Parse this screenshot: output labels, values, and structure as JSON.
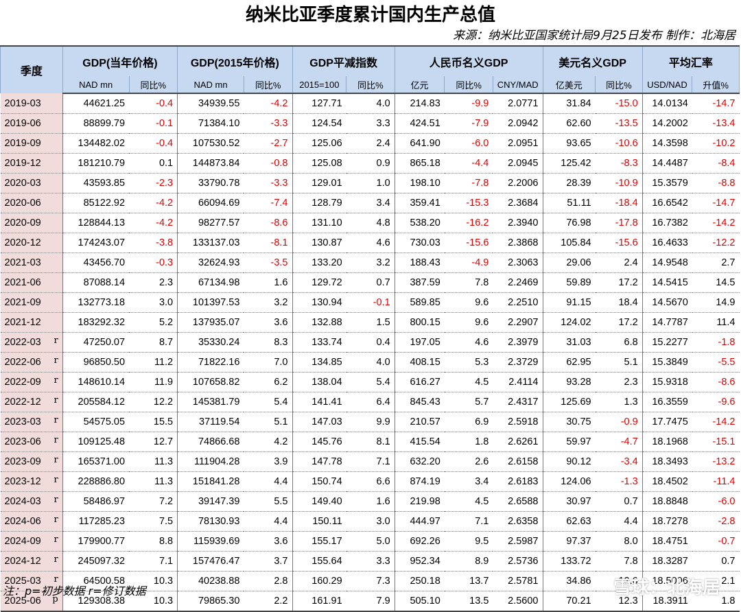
{
  "title": "纳米比亚季度累计国内生产总值",
  "source": "来源：纳米比亚国家统计局9月25日发布 制作：北海居",
  "note": "注：p=初步数据 r=修订数据",
  "watermark": "雪球：北海居",
  "header": {
    "quarter": "季度",
    "groups": [
      "GDP(当年价格)",
      "GDP(2015年价格)",
      "GDP平减指数",
      "人民币名义GDP",
      "美元名义GDP",
      "平均汇率"
    ],
    "sub": [
      "NAD mn",
      "同比%",
      "NAD mn",
      "同比%",
      "2015=100",
      "同比%",
      "亿元",
      "同比%",
      "CNY/MAD",
      "亿美元",
      "同比%",
      "USD/NAD",
      "升值%"
    ]
  },
  "colors": {
    "header_bg": "#c6d9f1",
    "quarter_bg": "#f2dcdb",
    "negative": "#e00000"
  },
  "rows": [
    {
      "q": "2019-03",
      "m": "",
      "v": [
        "44621.25",
        "-0.4",
        "34939.55",
        "-4.2",
        "127.71",
        "4.0",
        "214.83",
        "-9.9",
        "2.0771",
        "31.84",
        "-15.0",
        "14.0134",
        "-14.7"
      ]
    },
    {
      "q": "2019-06",
      "m": "",
      "v": [
        "88899.79",
        "-0.1",
        "71384.10",
        "-3.3",
        "124.54",
        "3.3",
        "424.51",
        "-7.9",
        "2.0942",
        "62.60",
        "-13.5",
        "14.2002",
        "-13.4"
      ]
    },
    {
      "q": "2019-09",
      "m": "",
      "v": [
        "134482.02",
        "-0.4",
        "107530.52",
        "-2.7",
        "125.06",
        "2.4",
        "641.90",
        "-6.0",
        "2.0951",
        "93.65",
        "-10.6",
        "14.3598",
        "-10.2"
      ]
    },
    {
      "q": "2019-12",
      "m": "",
      "v": [
        "181210.79",
        "0.1",
        "144873.84",
        "-0.8",
        "125.08",
        "0.9",
        "865.18",
        "-4.4",
        "2.0945",
        "125.42",
        "-8.3",
        "14.4487",
        "-8.4"
      ]
    },
    {
      "q": "2020-03",
      "m": "",
      "v": [
        "43593.85",
        "-2.3",
        "33790.78",
        "-3.3",
        "129.01",
        "1.0",
        "198.10",
        "-7.8",
        "2.2006",
        "28.39",
        "-10.9",
        "15.3579",
        "-8.8"
      ]
    },
    {
      "q": "2020-06",
      "m": "",
      "v": [
        "85122.92",
        "-4.2",
        "66094.69",
        "-7.4",
        "128.79",
        "3.4",
        "359.41",
        "-15.3",
        "2.3684",
        "51.11",
        "-18.4",
        "16.6542",
        "-14.7"
      ]
    },
    {
      "q": "2020-09",
      "m": "",
      "v": [
        "128844.13",
        "-4.2",
        "98277.57",
        "-8.6",
        "131.10",
        "4.8",
        "538.20",
        "-16.2",
        "2.3940",
        "76.98",
        "-17.8",
        "16.7382",
        "-14.2"
      ]
    },
    {
      "q": "2020-12",
      "m": "",
      "v": [
        "174243.07",
        "-3.8",
        "133137.03",
        "-8.1",
        "130.87",
        "4.6",
        "730.03",
        "-15.6",
        "2.3868",
        "105.84",
        "-15.6",
        "16.4633",
        "-12.2"
      ]
    },
    {
      "q": "2021-03",
      "m": "",
      "v": [
        "43456.70",
        "-0.3",
        "32624.93",
        "-3.5",
        "133.20",
        "3.2",
        "188.43",
        "-4.9",
        "2.3063",
        "29.06",
        "2.4",
        "14.9548",
        "2.7"
      ]
    },
    {
      "q": "2021-06",
      "m": "",
      "v": [
        "87088.14",
        "2.3",
        "67134.98",
        "1.6",
        "129.72",
        "0.7",
        "387.59",
        "7.8",
        "2.2469",
        "59.89",
        "17.2",
        "14.5415",
        "14.5"
      ]
    },
    {
      "q": "2021-09",
      "m": "",
      "v": [
        "132773.18",
        "3.0",
        "101397.53",
        "3.2",
        "130.94",
        "-0.1",
        "589.85",
        "9.6",
        "2.2510",
        "91.15",
        "18.4",
        "14.5670",
        "14.9"
      ]
    },
    {
      "q": "2021-12",
      "m": "",
      "v": [
        "183292.32",
        "5.2",
        "137935.07",
        "3.6",
        "132.88",
        "1.5",
        "800.15",
        "9.6",
        "2.2907",
        "124.02",
        "17.2",
        "14.7787",
        "11.4"
      ]
    },
    {
      "q": "2022-03",
      "m": "r",
      "v": [
        "47250.07",
        "8.7",
        "35330.24",
        "8.3",
        "133.74",
        "0.4",
        "197.05",
        "4.6",
        "2.3979",
        "31.03",
        "6.8",
        "15.2277",
        "-1.8"
      ]
    },
    {
      "q": "2022-06",
      "m": "r",
      "v": [
        "96850.50",
        "11.2",
        "71822.16",
        "7.0",
        "134.85",
        "4.0",
        "408.15",
        "5.3",
        "2.3729",
        "62.95",
        "5.1",
        "15.3849",
        "-5.5"
      ]
    },
    {
      "q": "2022-09",
      "m": "r",
      "v": [
        "148610.14",
        "11.9",
        "107658.82",
        "6.2",
        "138.04",
        "5.4",
        "616.27",
        "4.5",
        "2.4114",
        "93.28",
        "2.3",
        "15.9318",
        "-8.6"
      ]
    },
    {
      "q": "2022-12",
      "m": "r",
      "v": [
        "205584.12",
        "12.2",
        "145381.79",
        "5.4",
        "141.41",
        "6.4",
        "845.43",
        "5.7",
        "2.4317",
        "125.69",
        "1.3",
        "16.3559",
        "-9.6"
      ]
    },
    {
      "q": "2023-03",
      "m": "r",
      "v": [
        "54575.05",
        "15.5",
        "37119.54",
        "5.1",
        "147.03",
        "9.9",
        "210.57",
        "6.9",
        "2.5918",
        "30.75",
        "-0.9",
        "17.7475",
        "-14.2"
      ]
    },
    {
      "q": "2023-06",
      "m": "r",
      "v": [
        "109125.48",
        "12.7",
        "74866.68",
        "4.2",
        "145.76",
        "8.1",
        "415.54",
        "1.8",
        "2.6261",
        "59.97",
        "-4.7",
        "18.1968",
        "-15.1"
      ]
    },
    {
      "q": "2023-09",
      "m": "r",
      "v": [
        "165371.00",
        "11.3",
        "111904.28",
        "3.9",
        "147.78",
        "7.1",
        "632.20",
        "2.6",
        "2.6158",
        "90.12",
        "-3.4",
        "18.3493",
        "-13.2"
      ]
    },
    {
      "q": "2023-12",
      "m": "r",
      "v": [
        "228886.80",
        "11.3",
        "151841.28",
        "4.4",
        "150.74",
        "6.6",
        "874.19",
        "3.4",
        "2.6183",
        "124.06",
        "-1.3",
        "18.4502",
        "-11.4"
      ]
    },
    {
      "q": "2024-03",
      "m": "r",
      "v": [
        "58486.97",
        "7.2",
        "39147.39",
        "5.5",
        "149.40",
        "1.6",
        "219.98",
        "4.5",
        "2.6588",
        "30.97",
        "0.7",
        "18.8848",
        "-6.0"
      ]
    },
    {
      "q": "2024-06",
      "m": "r",
      "v": [
        "117285.23",
        "7.5",
        "78130.93",
        "4.4",
        "150.11",
        "3.0",
        "444.97",
        "7.1",
        "2.6358",
        "62.63",
        "4.4",
        "18.7278",
        "-2.8"
      ]
    },
    {
      "q": "2024-09",
      "m": "r",
      "v": [
        "179900.77",
        "8.8",
        "115939.69",
        "3.6",
        "155.17",
        "5.0",
        "692.26",
        "9.5",
        "2.5987",
        "97.37",
        "8.0",
        "18.4751",
        "-0.7"
      ]
    },
    {
      "q": "2024-12",
      "m": "r",
      "v": [
        "245097.32",
        "7.1",
        "157476.47",
        "3.7",
        "155.64",
        "3.3",
        "952.34",
        "8.9",
        "2.5736",
        "133.72",
        "7.8",
        "18.3287",
        "0.7"
      ]
    },
    {
      "q": "2025-03",
      "m": "r",
      "v": [
        "64500.58",
        "10.3",
        "40238.88",
        "2.8",
        "160.29",
        "7.3",
        "250.18",
        "13.7",
        "2.5781",
        "34.86",
        "12.6",
        "18.5006",
        "2.1"
      ]
    },
    {
      "q": "2025-06",
      "m": "p",
      "v": [
        "129308.38",
        "10.3",
        "79865.30",
        "2.2",
        "161.91",
        "7.9",
        "505.10",
        "13.5",
        "2.5600",
        "70.21",
        "12.3",
        "18.3911",
        "1.8"
      ]
    }
  ]
}
